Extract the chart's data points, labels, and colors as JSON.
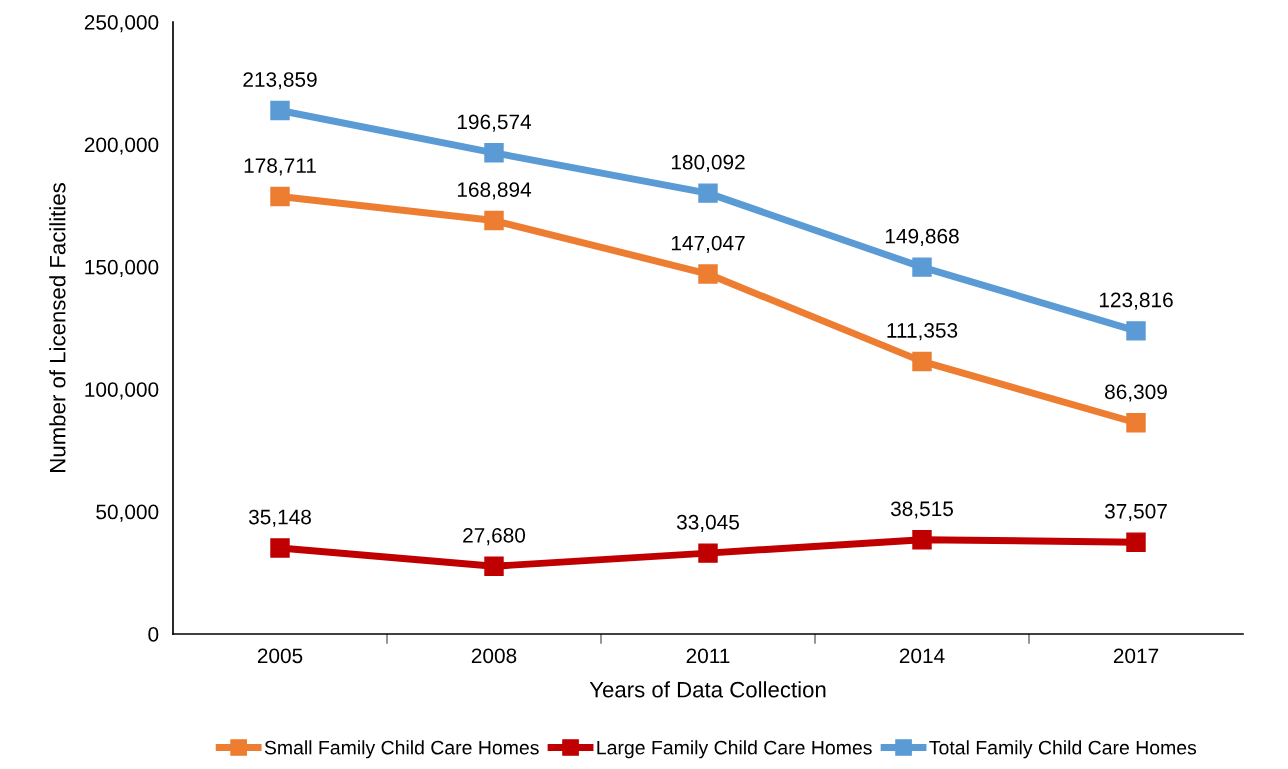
{
  "chart_data": {
    "type": "line",
    "xlabel": "Years of Data Collection",
    "ylabel": "Number of Licensed Facilities",
    "categories": [
      "2005",
      "2008",
      "2011",
      "2014",
      "2017"
    ],
    "series": [
      {
        "name": "Small Family Child Care Homes",
        "color": "#ed7d31",
        "values": [
          178711,
          168894,
          147047,
          111353,
          86309
        ],
        "value_labels": [
          "178,711",
          "168,894",
          "147,047",
          "111,353",
          "86,309"
        ]
      },
      {
        "name": "Large Family Child Care Homes",
        "color": "#c00000",
        "values": [
          35148,
          27680,
          33045,
          38515,
          37507
        ],
        "value_labels": [
          "35,148",
          "27,680",
          "33,045",
          "38,515",
          "37,507"
        ]
      },
      {
        "name": "Total Family Child Care Homes",
        "color": "#5b9bd5",
        "values": [
          213859,
          196574,
          180092,
          149868,
          123816
        ],
        "value_labels": [
          "213,859",
          "196,574",
          "180,092",
          "149,868",
          "123,816"
        ]
      }
    ],
    "ylim": [
      0,
      250000
    ],
    "yticks": [
      0,
      {
        "value": 50000,
        "label": "50,000"
      },
      {
        "value": 100000,
        "label": "100,000"
      },
      {
        "value": 150000,
        "label": "150,000"
      },
      {
        "value": 200000,
        "label": "200,000"
      },
      {
        "value": 250000,
        "label": "250,000"
      }
    ],
    "marker": "square",
    "line_style": "solid",
    "grid": false,
    "legend": "bottom"
  }
}
